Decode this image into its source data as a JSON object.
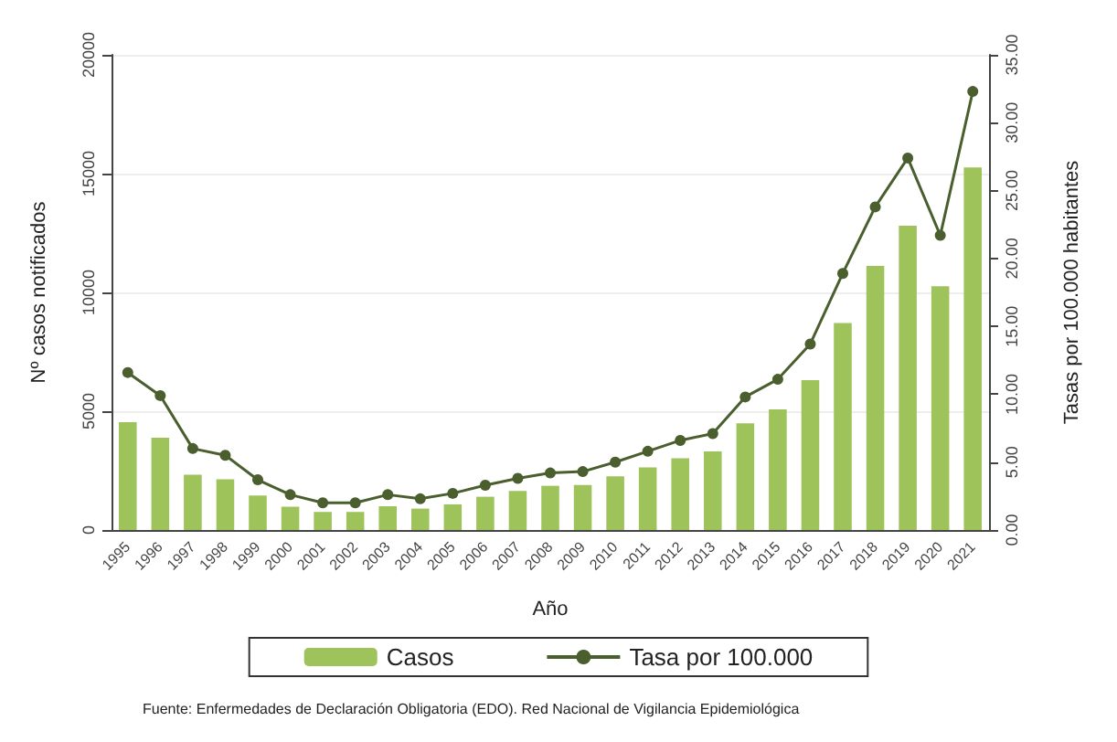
{
  "chart_data": {
    "type": "bar",
    "xlabel": "Año",
    "ylabel": "Nº casos notificados",
    "y2label": "Tasas por 100.000 habitantes",
    "categories": [
      "1995",
      "1996",
      "1997",
      "1998",
      "1999",
      "2000",
      "2001",
      "2002",
      "2003",
      "2004",
      "2005",
      "2006",
      "2007",
      "2008",
      "2009",
      "2010",
      "2011",
      "2012",
      "2013",
      "2014",
      "2015",
      "2016",
      "2017",
      "2018",
      "2019",
      "2020",
      "2021"
    ],
    "series": [
      {
        "name": "Casos",
        "color": "#9dc35a",
        "values": [
          4540,
          3880,
          2330,
          2130,
          1450,
          980,
          760,
          760,
          1000,
          900,
          1080,
          1400,
          1640,
          1860,
          1890,
          2260,
          2630,
          3020,
          3310,
          4490,
          5080,
          6310,
          8710,
          11120,
          12810,
          10260,
          15260
        ]
      },
      {
        "name": "Tasa por 100.000",
        "type": "line",
        "axis": "y2",
        "color": "#4a5e2e",
        "marker": "circle",
        "values": [
          11.6,
          9.9,
          6.0,
          5.5,
          3.7,
          2.6,
          2.0,
          2.0,
          2.6,
          2.3,
          2.7,
          3.3,
          3.8,
          4.2,
          4.3,
          5.0,
          5.8,
          6.6,
          7.1,
          9.8,
          11.1,
          13.7,
          18.9,
          23.8,
          27.4,
          21.7,
          32.3
        ]
      }
    ],
    "ylim": [
      0,
      20000
    ],
    "yticks": [
      0,
      5000,
      10000,
      15000,
      20000
    ],
    "y2lim": [
      0,
      35
    ],
    "y2ticks": [
      {
        "value": 0,
        "label": "0.00"
      },
      {
        "value": 5,
        "label": "5.00"
      },
      {
        "value": 10,
        "label": "10.00"
      },
      {
        "value": 15,
        "label": "15.00"
      },
      {
        "value": 20,
        "label": "20.00"
      },
      {
        "value": 25,
        "label": "25.00"
      },
      {
        "value": 30,
        "label": "30.00"
      },
      {
        "value": 35,
        "label": "35.00"
      }
    ],
    "grid": "y",
    "legend": "bottom",
    "annotations": [
      "Fuente: Enfermedades de Declaración Obligatoria (EDO). Red Nacional de Vigilancia Epidemiológica"
    ]
  }
}
